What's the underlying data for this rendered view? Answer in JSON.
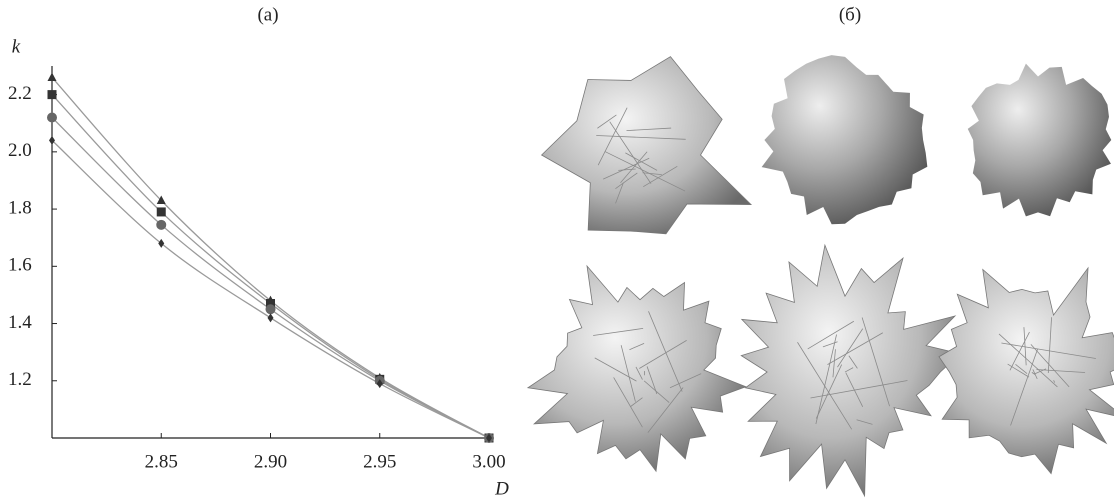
{
  "chart_data": {
    "type": "line",
    "title": "(a)",
    "y_label": "k",
    "x_label": "D",
    "x": [
      2.8,
      2.85,
      2.9,
      2.95,
      3.0
    ],
    "series": [
      {
        "marker": "triangle",
        "color": "#333333",
        "values": [
          2.26,
          1.83,
          1.48,
          1.21,
          1.0
        ]
      },
      {
        "marker": "square",
        "color": "#333333",
        "values": [
          2.2,
          1.79,
          1.47,
          1.205,
          1.0
        ]
      },
      {
        "marker": "circle",
        "color": "#666666",
        "values": [
          2.12,
          1.745,
          1.45,
          1.2,
          1.0
        ]
      },
      {
        "marker": "diamond",
        "color": "#333333",
        "values": [
          2.04,
          1.68,
          1.42,
          1.19,
          1.0
        ]
      }
    ],
    "line_color": "#9a9a9a",
    "xlim": [
      2.8,
      3.0
    ],
    "ylim": [
      1.0,
      2.3
    ],
    "xticks": [
      2.85,
      {
        "value": 2.9,
        "label": "2.90"
      },
      2.95,
      {
        "value": 3.0,
        "label": "3.00"
      }
    ],
    "yticks": [
      1.2,
      1.4,
      1.6,
      1.8,
      {
        "value": 2.0,
        "label": "2.0"
      },
      2.2
    ],
    "grid": false
  },
  "panel_b": {
    "label": "(б)"
  }
}
